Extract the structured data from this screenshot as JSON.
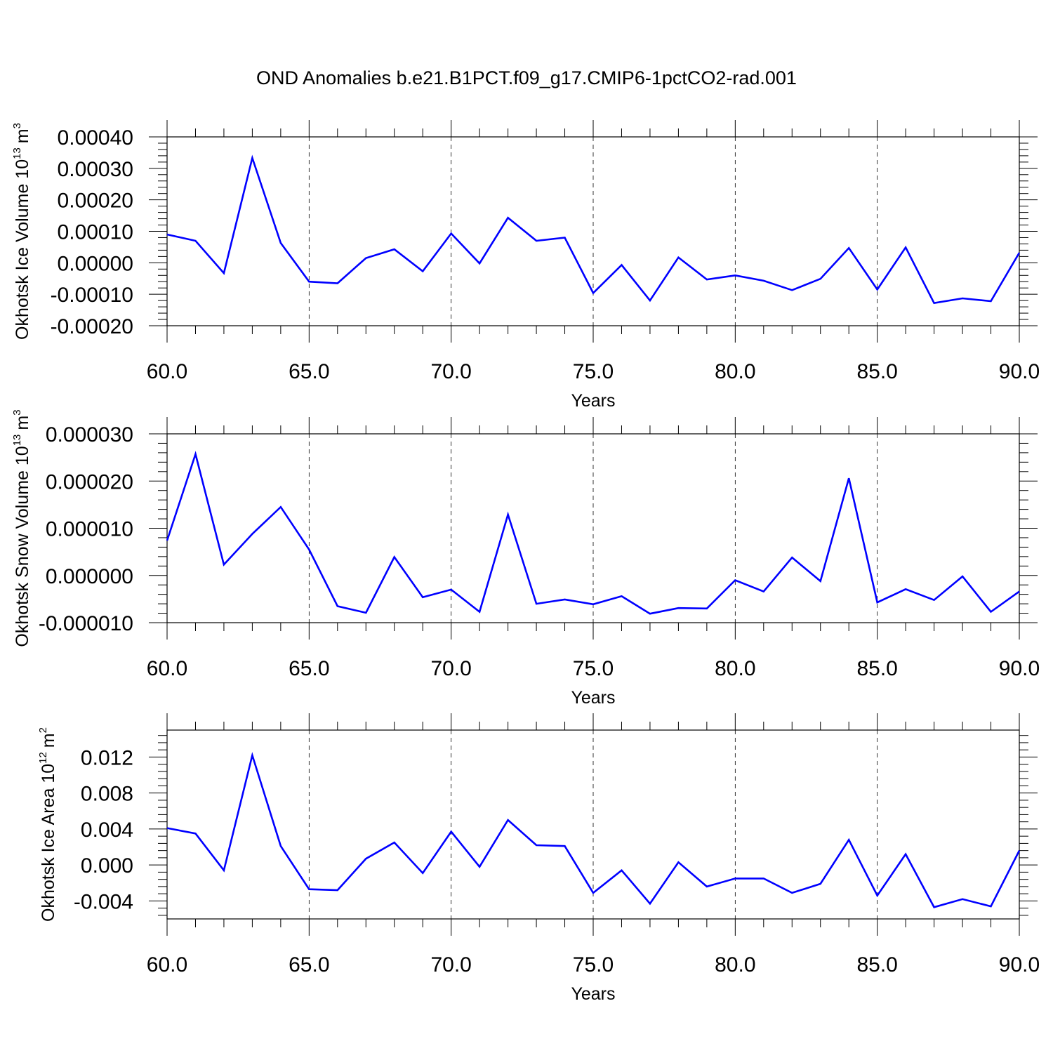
{
  "title": "OND Anomalies b.e21.B1PCT.f09_g17.CMIP6-1pctCO2-rad.001",
  "colors": {
    "line": "#0000ff",
    "axis": "#000000",
    "grid": "#000000"
  },
  "chart_data": [
    {
      "type": "line",
      "title": "",
      "xlabel": "Years",
      "ylabel": {
        "prefix": "Okhotsk Ice Volume 10",
        "exponent": "13",
        "unit": "m",
        "unit_exponent": "3"
      },
      "xlim": [
        60,
        90
      ],
      "ylim": [
        -0.0002,
        0.0004
      ],
      "x_ticks": [
        60,
        65,
        70,
        75,
        80,
        85,
        90
      ],
      "x_tick_labels": [
        "60.0",
        "65.0",
        "70.0",
        "75.0",
        "80.0",
        "85.0",
        "90.0"
      ],
      "y_ticks": [
        -0.0002,
        -0.0001,
        0,
        0.0001,
        0.0002,
        0.0003,
        0.0004
      ],
      "y_tick_labels": [
        "-0.00020",
        "-0.00010",
        "0.00000",
        "0.00010",
        "0.00020",
        "0.00030",
        "0.00040"
      ],
      "vertical_gridlines": [
        65,
        70,
        75,
        80,
        85
      ],
      "series": [
        {
          "x": [
            60,
            61,
            62,
            63,
            64,
            65,
            66,
            67,
            68,
            69,
            70,
            71,
            72,
            73,
            74,
            75,
            76,
            77,
            78,
            79,
            80,
            81,
            82,
            83,
            84,
            85,
            86,
            87,
            88,
            89,
            90
          ],
          "values": [
            9e-05,
            7e-05,
            -3.3e-05,
            0.000333,
            6.3e-05,
            -6e-05,
            -6.5e-05,
            1.5e-05,
            4.3e-05,
            -2.7e-05,
            9.3e-05,
            -2e-06,
            0.000143,
            7e-05,
            8e-05,
            -9.6e-05,
            -7e-06,
            -0.00012,
            1.7e-05,
            -5.3e-05,
            -4e-05,
            -5.7e-05,
            -8.7e-05,
            -5.1e-05,
            4.7e-05,
            -8.5e-05,
            4.9e-05,
            -0.000128,
            -0.000113,
            -0.000122,
            3.2e-05
          ]
        }
      ]
    },
    {
      "type": "line",
      "title": "",
      "xlabel": "Years",
      "ylabel": {
        "prefix": "Okhotsk Snow Volume 10",
        "exponent": "13",
        "unit": "m",
        "unit_exponent": "3"
      },
      "xlim": [
        60,
        90
      ],
      "ylim": [
        -1e-05,
        3e-05
      ],
      "x_ticks": [
        60,
        65,
        70,
        75,
        80,
        85,
        90
      ],
      "x_tick_labels": [
        "60.0",
        "65.0",
        "70.0",
        "75.0",
        "80.0",
        "85.0",
        "90.0"
      ],
      "y_ticks": [
        -1e-05,
        0,
        1e-05,
        2e-05,
        3e-05
      ],
      "y_tick_labels": [
        "-0.000010",
        "0.000000",
        "0.000010",
        "0.000020",
        "0.000030"
      ],
      "vertical_gridlines": [
        65,
        70,
        75,
        80,
        85
      ],
      "series": [
        {
          "x": [
            60,
            61,
            62,
            63,
            64,
            65,
            66,
            67,
            68,
            69,
            70,
            71,
            72,
            73,
            74,
            75,
            76,
            77,
            78,
            79,
            80,
            81,
            82,
            83,
            84,
            85,
            86,
            87,
            88,
            89,
            90
          ],
          "values": [
            7.4e-06,
            2.57e-05,
            2.3e-06,
            8.8e-06,
            1.45e-05,
            5.5e-06,
            -6.5e-06,
            -7.9e-06,
            3.9e-06,
            -4.6e-06,
            -3e-06,
            -7.7e-06,
            1.29e-05,
            -6e-06,
            -5.1e-06,
            -6.1e-06,
            -4.4e-06,
            -8.1e-06,
            -6.9e-06,
            -7e-06,
            -1e-06,
            -3.4e-06,
            3.8e-06,
            -1.2e-06,
            2.06e-05,
            -5.7e-06,
            -2.9e-06,
            -5.2e-06,
            -2e-07,
            -7.7e-06,
            -3.4e-06
          ]
        }
      ]
    },
    {
      "type": "line",
      "title": "",
      "xlabel": "Years",
      "ylabel": {
        "prefix": "Okhotsk Ice Area 10",
        "exponent": "12",
        "unit": "m",
        "unit_exponent": "2"
      },
      "xlim": [
        60,
        90
      ],
      "ylim": [
        -0.006,
        0.015
      ],
      "x_ticks": [
        60,
        65,
        70,
        75,
        80,
        85,
        90
      ],
      "x_tick_labels": [
        "60.0",
        "65.0",
        "70.0",
        "75.0",
        "80.0",
        "85.0",
        "90.0"
      ],
      "y_ticks": [
        -0.004,
        0,
        0.004,
        0.008,
        0.012
      ],
      "y_tick_labels": [
        "-0.004",
        "0.000",
        "0.004",
        "0.008",
        "0.012"
      ],
      "vertical_gridlines": [
        65,
        70,
        75,
        80,
        85
      ],
      "series": [
        {
          "x": [
            60,
            61,
            62,
            63,
            64,
            65,
            66,
            67,
            68,
            69,
            70,
            71,
            72,
            73,
            74,
            75,
            76,
            77,
            78,
            79,
            80,
            81,
            82,
            83,
            84,
            85,
            86,
            87,
            88,
            89,
            90
          ],
          "values": [
            0.0041,
            0.0035,
            -0.0006,
            0.0122,
            0.0021,
            -0.0027,
            -0.0028,
            0.0007,
            0.0025,
            -0.0009,
            0.0037,
            -0.0002,
            0.005,
            0.0022,
            0.0021,
            -0.0031,
            -0.0006,
            -0.0043,
            0.0003,
            -0.0024,
            -0.0015,
            -0.0015,
            -0.0031,
            -0.0021,
            0.0028,
            -0.0034,
            0.0012,
            -0.0047,
            -0.0038,
            -0.0046,
            0.0016
          ]
        }
      ]
    }
  ]
}
